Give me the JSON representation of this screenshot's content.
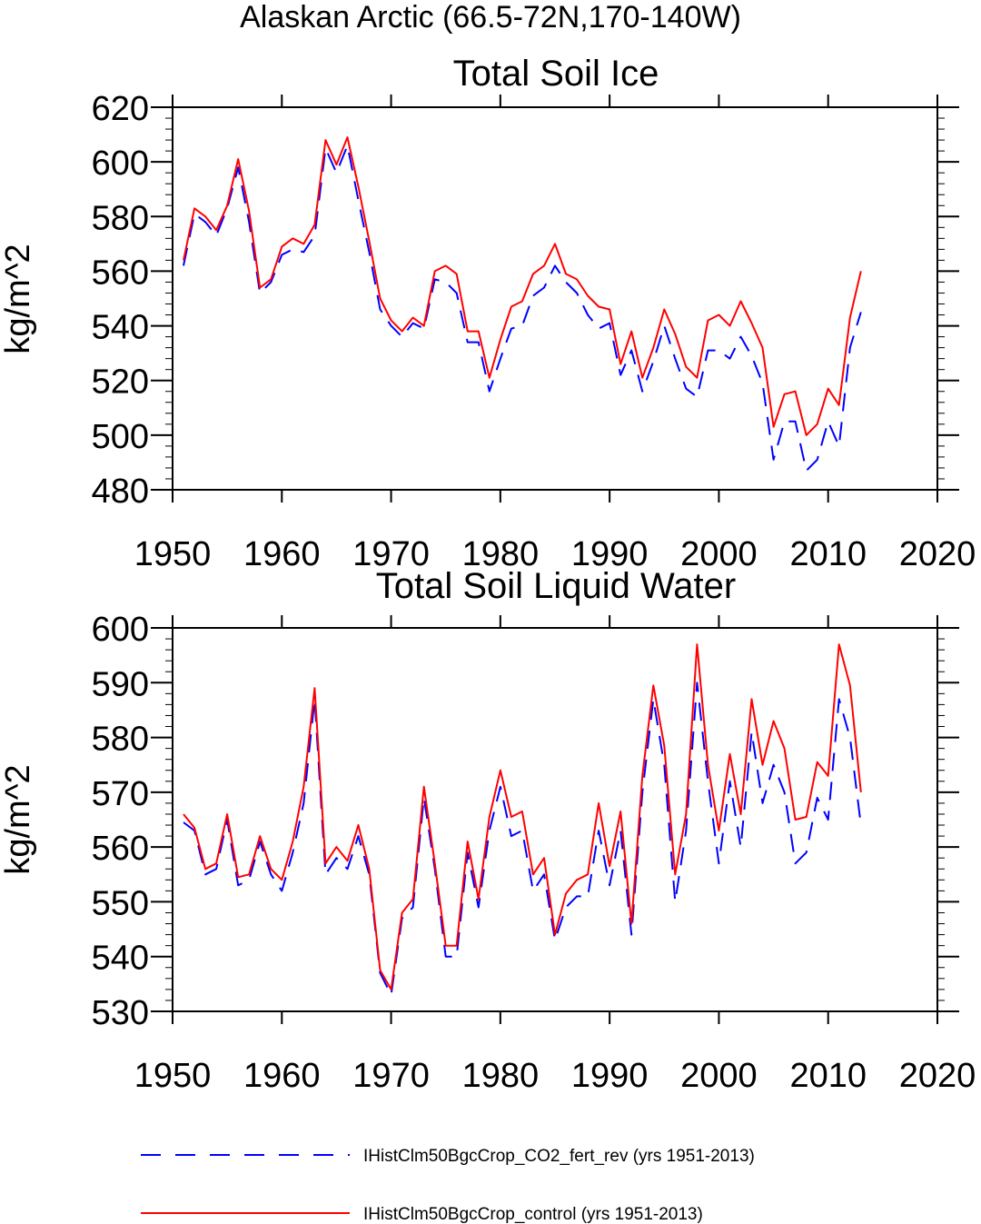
{
  "figure_title": "Alaskan Arctic (66.5-72N,170-140W)",
  "legend": [
    {
      "label": "IHistClm50BgcCrop_CO2_fert_rev (yrs 1951-2013)",
      "color": "#0000ff",
      "style": "dashed"
    },
    {
      "label": "IHistClm50BgcCrop_control (yrs 1951-2013)",
      "color": "#ff0000",
      "style": "solid"
    }
  ],
  "chart_data": [
    {
      "type": "line",
      "title": "Total Soil Ice",
      "xlabel": "",
      "ylabel": "kg/m^2",
      "xlim": [
        1950,
        2020
      ],
      "ylim": [
        480,
        620
      ],
      "xticks": [
        1950,
        1960,
        1970,
        1980,
        1990,
        2000,
        2010,
        2020
      ],
      "yticks": [
        480,
        500,
        520,
        540,
        560,
        580,
        600,
        620
      ],
      "x": [
        1951,
        1952,
        1953,
        1954,
        1955,
        1956,
        1957,
        1958,
        1959,
        1960,
        1961,
        1962,
        1963,
        1964,
        1965,
        1966,
        1967,
        1968,
        1969,
        1970,
        1971,
        1972,
        1973,
        1974,
        1975,
        1976,
        1977,
        1978,
        1979,
        1980,
        1981,
        1982,
        1983,
        1984,
        1985,
        1986,
        1987,
        1988,
        1989,
        1990,
        1991,
        1992,
        1993,
        1994,
        1995,
        1996,
        1997,
        1998,
        1999,
        2000,
        2001,
        2002,
        2003,
        2004,
        2005,
        2006,
        2007,
        2008,
        2009,
        2010,
        2011,
        2012,
        2013
      ],
      "series": [
        {
          "name": "IHistClm50BgcCrop_CO2_fert_rev (yrs 1951-2013)",
          "color": "#0000ff",
          "style": "dashed",
          "values": [
            562,
            581,
            578,
            573,
            583,
            598,
            578,
            552,
            556,
            566,
            568,
            567,
            573,
            605,
            596,
            606,
            586,
            567,
            546,
            540,
            536,
            541,
            539,
            557,
            556,
            552,
            534,
            534,
            516,
            528,
            539,
            540,
            551,
            554,
            562,
            556,
            552,
            544,
            539,
            541,
            522,
            531,
            516,
            527,
            540,
            528,
            517,
            514,
            531,
            531,
            528,
            536,
            529,
            519,
            491,
            505,
            505,
            487,
            491,
            505,
            496,
            532,
            545
          ]
        },
        {
          "name": "IHistClm50BgcCrop_control (yrs 1951-2013)",
          "color": "#ff0000",
          "style": "solid",
          "values": [
            564,
            583,
            580,
            575,
            584,
            601,
            582,
            554,
            557,
            569,
            572,
            570,
            577,
            608,
            599,
            609,
            591,
            571,
            550,
            542,
            538,
            543,
            540,
            560,
            562,
            559,
            538,
            538,
            521,
            535,
            547,
            549,
            559,
            562,
            570,
            559,
            557,
            551,
            547,
            546,
            526,
            538,
            521,
            532,
            546,
            537,
            525,
            521,
            542,
            544,
            540,
            549,
            541,
            532,
            503,
            515,
            516,
            500,
            504,
            517,
            511,
            543,
            560
          ]
        }
      ]
    },
    {
      "type": "line",
      "title": "Total Soil Liquid Water",
      "xlabel": "",
      "ylabel": "kg/m^2",
      "xlim": [
        1950,
        2020
      ],
      "ylim": [
        530,
        600
      ],
      "xticks": [
        1950,
        1960,
        1970,
        1980,
        1990,
        2000,
        2010,
        2020
      ],
      "yticks": [
        530,
        540,
        550,
        560,
        570,
        580,
        590,
        600
      ],
      "x": [
        1951,
        1952,
        1953,
        1954,
        1955,
        1956,
        1957,
        1958,
        1959,
        1960,
        1961,
        1962,
        1963,
        1964,
        1965,
        1966,
        1967,
        1968,
        1969,
        1970,
        1971,
        1972,
        1973,
        1974,
        1975,
        1976,
        1977,
        1978,
        1979,
        1980,
        1981,
        1982,
        1983,
        1984,
        1985,
        1986,
        1987,
        1988,
        1989,
        1990,
        1991,
        1992,
        1993,
        1994,
        1995,
        1996,
        1997,
        1998,
        1999,
        2000,
        2001,
        2002,
        2003,
        2004,
        2005,
        2006,
        2007,
        2008,
        2009,
        2010,
        2011,
        2012,
        2013
      ],
      "series": [
        {
          "name": "IHistClm50BgcCrop_CO2_fert_rev (yrs 1951-2013)",
          "color": "#0000ff",
          "style": "dashed",
          "values": [
            564.5,
            563,
            555,
            556,
            565,
            553,
            554,
            561,
            555,
            552,
            559,
            568,
            587,
            555,
            558,
            556,
            562,
            555,
            537,
            533,
            547,
            549,
            569,
            556,
            540,
            540,
            559,
            549,
            563,
            571,
            562,
            563,
            552,
            555,
            543,
            549,
            551,
            551,
            563,
            553,
            563,
            544,
            570,
            587,
            575,
            550,
            563,
            590,
            572,
            557,
            572,
            560,
            581,
            568,
            575,
            570,
            557,
            559,
            569,
            565,
            587,
            580,
            564
          ]
        },
        {
          "name": "IHistClm50BgcCrop_control (yrs 1951-2013)",
          "color": "#ff0000",
          "style": "solid",
          "values": [
            566,
            563.5,
            556,
            557,
            566,
            554.5,
            555,
            562,
            556,
            554,
            561,
            571,
            589,
            557,
            560,
            557.5,
            564,
            556,
            537.5,
            534,
            548,
            550.5,
            571,
            557,
            542,
            542,
            561,
            550.5,
            565.5,
            574,
            565.5,
            566.5,
            555,
            558,
            544,
            551.5,
            554,
            555,
            568,
            556.5,
            566.5,
            546,
            573,
            589.5,
            578.5,
            555,
            566,
            597,
            575,
            563,
            577,
            566,
            587,
            575,
            583,
            578,
            565,
            565.5,
            575.5,
            573,
            597,
            589.5,
            570
          ]
        }
      ]
    }
  ]
}
